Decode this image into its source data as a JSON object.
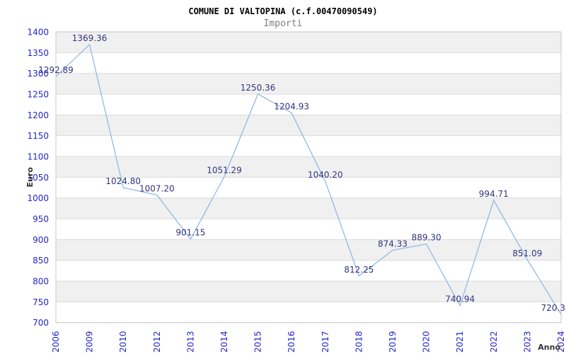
{
  "chart_data": {
    "type": "line",
    "title": "COMUNE DI VALTOPINA (c.f.00470090549)",
    "subtitle": "Importi",
    "xlabel": "Anno",
    "ylabel": "Euro",
    "x": [
      "2006",
      "2009",
      "2010",
      "2012",
      "2013",
      "2014",
      "2015",
      "2016",
      "2017",
      "2018",
      "2019",
      "2020",
      "2021",
      "2022",
      "2023",
      "2024"
    ],
    "values": [
      1292.89,
      1369.36,
      1024.8,
      1007.2,
      901.15,
      1051.29,
      1250.36,
      1204.93,
      1040.2,
      812.25,
      874.33,
      889.3,
      740.94,
      994.71,
      851.09,
      720.3
    ],
    "point_labels": [
      "1292.89",
      "1369.36",
      "1024.80",
      "1007.20",
      "901.15",
      "1051.29",
      "1250.36",
      "1204.93",
      "1040.20",
      "812.25",
      "874.33",
      "889.30",
      "740.94",
      "994.71",
      "851.09",
      "720.3"
    ],
    "ylim": [
      700,
      1400
    ],
    "ytick_step": 50,
    "yticks": [
      "700",
      "750",
      "800",
      "850",
      "900",
      "950",
      "1000",
      "1050",
      "1100",
      "1150",
      "1200",
      "1250",
      "1300",
      "1350",
      "1400"
    ],
    "legend": "none",
    "grid": "horizontal gridlines every 50 with alternating gray bands, topmost band gray",
    "colors": {
      "line": "#8ab6e3",
      "band": "#f0f0f0",
      "gridline": "#dcdcdc",
      "plot_border": "#c9c9c9",
      "tick_label": "#2323cc",
      "point_label": "#333380",
      "axis_title": "#333333",
      "title": "#000000",
      "subtitle": "#7f7f7f",
      "background": "#ffffff"
    }
  }
}
